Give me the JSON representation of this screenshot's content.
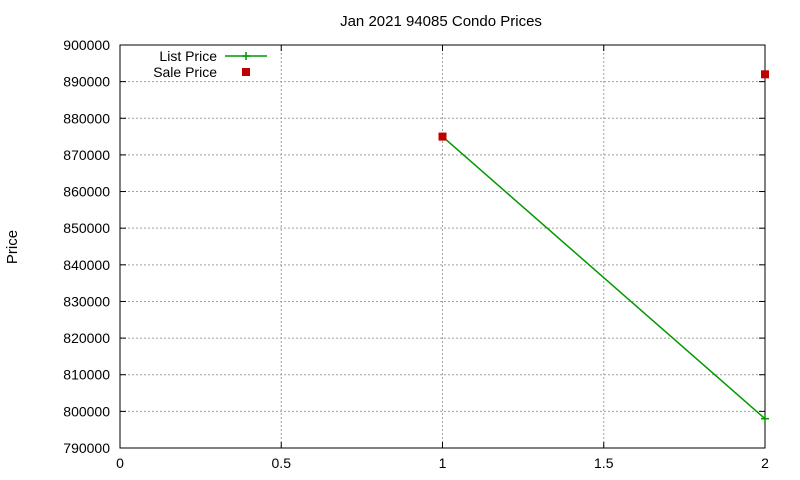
{
  "chart_data": {
    "type": "line",
    "title": "Jan 2021 94085 Condo Prices",
    "xlabel": "",
    "ylabel": "Price",
    "xlim": [
      0,
      2
    ],
    "ylim": [
      790000,
      900000
    ],
    "x_ticks": [
      "0",
      "0.5",
      "1",
      "1.5",
      "2"
    ],
    "y_ticks": [
      "790000",
      "800000",
      "810000",
      "820000",
      "830000",
      "840000",
      "850000",
      "860000",
      "870000",
      "880000",
      "890000",
      "900000"
    ],
    "grid": true,
    "legend_position": "top-left",
    "series": [
      {
        "name": "List Price",
        "style": "line-with-plus-markers",
        "color": "#009900",
        "points": [
          {
            "x": 1,
            "y": 875000
          },
          {
            "x": 2,
            "y": 798000
          }
        ]
      },
      {
        "name": "Sale Price",
        "style": "square-markers",
        "color": "#c00000",
        "points": [
          {
            "x": 1,
            "y": 875000
          },
          {
            "x": 2,
            "y": 892000
          }
        ]
      }
    ]
  }
}
